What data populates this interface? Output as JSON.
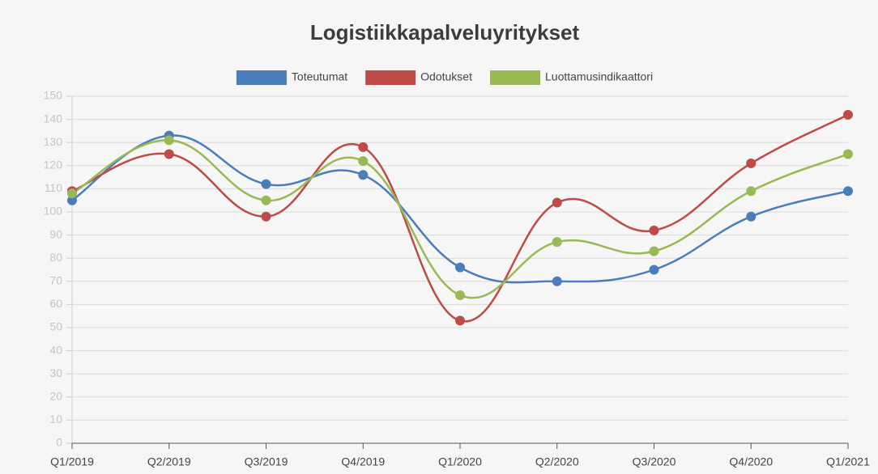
{
  "chart_data": {
    "type": "line",
    "title": "Logistiikkapalveluyritykset",
    "categories": [
      "Q1/2019",
      "Q2/2019",
      "Q3/2019",
      "Q4/2019",
      "Q1/2020",
      "Q2/2020",
      "Q3/2020",
      "Q4/2020",
      "Q1/2021"
    ],
    "series": [
      {
        "name": "Toteutumat",
        "color": "#4a7ebb",
        "values": [
          105,
          133,
          112,
          116,
          76,
          70,
          75,
          98,
          109
        ]
      },
      {
        "name": "Odotukset",
        "color": "#be4b48",
        "values": [
          109,
          125,
          98,
          128,
          53,
          104,
          92,
          121,
          142
        ]
      },
      {
        "name": "Luottamusindikaattori",
        "color": "#98b954",
        "values": [
          108,
          131,
          105,
          122,
          64,
          87,
          83,
          109,
          125
        ]
      }
    ],
    "ylim": [
      0,
      150
    ],
    "yticks": [
      0,
      10,
      20,
      30,
      40,
      50,
      60,
      70,
      80,
      90,
      100,
      110,
      120,
      130,
      140,
      150
    ],
    "grid": true,
    "legend": "top"
  }
}
